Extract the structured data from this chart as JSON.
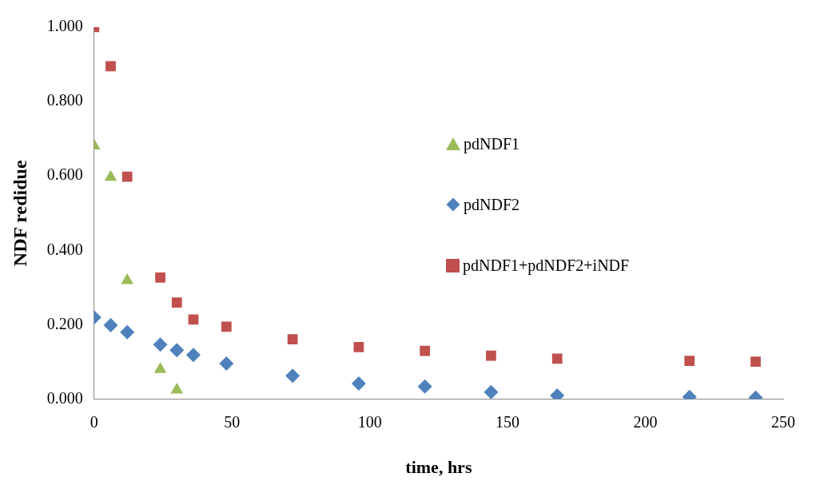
{
  "chart_data": {
    "type": "scatter",
    "xlabel": "time, hrs",
    "ylabel": "NDF redidue",
    "xlim": [
      0,
      250
    ],
    "xticks": [
      0,
      50,
      100,
      150,
      200,
      250
    ],
    "ylim": [
      0,
      1
    ],
    "yticks": [
      {
        "value": 0,
        "label": "0.000"
      },
      {
        "value": 0.2,
        "label": "0.200"
      },
      {
        "value": 0.4,
        "label": "0.400"
      },
      {
        "value": 0.6,
        "label": "0.600"
      },
      {
        "value": 0.8,
        "label": "0.800"
      },
      {
        "value": 1,
        "label": "1.000"
      }
    ],
    "grid": false,
    "legend": "right",
    "series": [
      {
        "name": "pdNDF1",
        "color": "#9bbb59",
        "marker": "triangle",
        "x": [
          0,
          6,
          12,
          24,
          30
        ],
        "values": [
          0.681,
          0.597,
          0.319,
          0.08,
          0.025
        ]
      },
      {
        "name": "pdNDF2",
        "color": "#4f81bd",
        "marker": "diamond",
        "x": [
          0,
          6,
          12,
          24,
          30,
          36,
          48,
          72,
          96,
          120,
          144,
          168,
          216,
          240
        ],
        "values": [
          0.22,
          0.199,
          0.18,
          0.147,
          0.132,
          0.119,
          0.096,
          0.063,
          0.042,
          0.034,
          0.019,
          0.01,
          0.006,
          0.004
        ]
      },
      {
        "name": "pdNDF1+pdNDF2+iNDF",
        "color": "#c0504d",
        "marker": "square",
        "x": [
          0,
          6,
          12,
          24,
          30,
          36,
          48,
          72,
          96,
          120,
          144,
          168,
          216,
          240
        ],
        "values": [
          1,
          0.895,
          0.598,
          0.327,
          0.26,
          0.214,
          0.195,
          0.161,
          0.14,
          0.13,
          0.117,
          0.109,
          0.103,
          0.101
        ]
      }
    ]
  }
}
